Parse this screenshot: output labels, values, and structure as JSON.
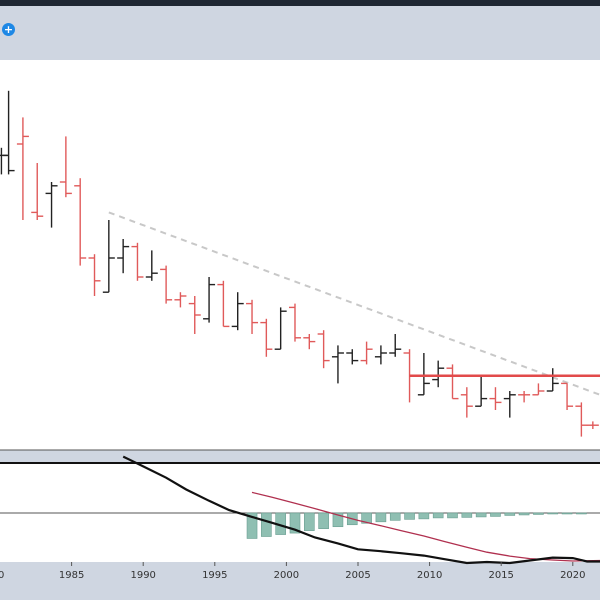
{
  "toolbar": {
    "add_icon": "plus-circle-icon",
    "add_glyph": "+"
  },
  "colors": {
    "up": "#222222",
    "down": "#e05a5a",
    "trendline": "#c8c8c8",
    "level_line": "#e24a4a",
    "histogram": "#8fbfb2",
    "fast_line": "#111111",
    "slow_line": "#b0304f"
  },
  "chart_data": {
    "type": "ohlc",
    "x_ticks": [
      "1985",
      "1990",
      "1995",
      "2000",
      "2005",
      "2010",
      "2015",
      "2020"
    ],
    "x_range": [
      1980.0,
      2021.9
    ],
    "price": {
      "y_range": [
        0,
        100
      ],
      "bars": [
        {
          "t": 1980.1,
          "o": 77,
          "h": 79,
          "l": 72,
          "c": 77,
          "up": true
        },
        {
          "t": 1980.6,
          "o": 77,
          "h": 94,
          "l": 72,
          "c": 73,
          "up": true
        },
        {
          "t": 1981.6,
          "o": 80,
          "h": 87,
          "l": 60,
          "c": 82,
          "up": false
        },
        {
          "t": 1982.6,
          "o": 62,
          "h": 75,
          "l": 60,
          "c": 61,
          "up": false
        },
        {
          "t": 1983.6,
          "o": 67,
          "h": 70,
          "l": 58,
          "c": 69,
          "up": true
        },
        {
          "t": 1984.6,
          "o": 70,
          "h": 82,
          "l": 66,
          "c": 67,
          "up": false
        },
        {
          "t": 1985.6,
          "o": 69,
          "h": 71,
          "l": 48,
          "c": 50,
          "up": false
        },
        {
          "t": 1986.6,
          "o": 50,
          "h": 51,
          "l": 40,
          "c": 44,
          "up": false
        },
        {
          "t": 1987.6,
          "o": 41,
          "h": 60,
          "l": 41,
          "c": 50,
          "up": true
        },
        {
          "t": 1988.6,
          "o": 50,
          "h": 55,
          "l": 46,
          "c": 53,
          "up": true
        },
        {
          "t": 1989.6,
          "o": 53,
          "h": 54,
          "l": 44,
          "c": 45,
          "up": false
        },
        {
          "t": 1990.6,
          "o": 45,
          "h": 52,
          "l": 44,
          "c": 46,
          "up": true
        },
        {
          "t": 1991.6,
          "o": 47,
          "h": 48,
          "l": 38,
          "c": 39,
          "up": false
        },
        {
          "t": 1992.6,
          "o": 39,
          "h": 41,
          "l": 37,
          "c": 40,
          "up": false
        },
        {
          "t": 1993.6,
          "o": 38,
          "h": 40,
          "l": 30,
          "c": 35,
          "up": false
        },
        {
          "t": 1994.6,
          "o": 34,
          "h": 45,
          "l": 33,
          "c": 43,
          "up": true
        },
        {
          "t": 1995.6,
          "o": 43,
          "h": 44,
          "l": 32,
          "c": 32,
          "up": false
        },
        {
          "t": 1996.6,
          "o": 32,
          "h": 41,
          "l": 31,
          "c": 38,
          "up": true
        },
        {
          "t": 1997.6,
          "o": 38,
          "h": 39,
          "l": 30,
          "c": 33,
          "up": false
        },
        {
          "t": 1998.6,
          "o": 33,
          "h": 34,
          "l": 24,
          "c": 26,
          "up": false
        },
        {
          "t": 1999.6,
          "o": 26,
          "h": 37,
          "l": 26,
          "c": 36,
          "up": true
        },
        {
          "t": 2000.6,
          "o": 37,
          "h": 38,
          "l": 28,
          "c": 29,
          "up": false
        },
        {
          "t": 2001.6,
          "o": 29,
          "h": 30,
          "l": 26,
          "c": 28,
          "up": false
        },
        {
          "t": 2002.6,
          "o": 30,
          "h": 31,
          "l": 21,
          "c": 23,
          "up": false
        },
        {
          "t": 2003.6,
          "o": 24,
          "h": 27,
          "l": 17,
          "c": 25,
          "up": true
        },
        {
          "t": 2004.6,
          "o": 25,
          "h": 26,
          "l": 22,
          "c": 23,
          "up": true
        },
        {
          "t": 2005.6,
          "o": 23,
          "h": 28,
          "l": 22,
          "c": 26,
          "up": false
        },
        {
          "t": 2006.6,
          "o": 24,
          "h": 27,
          "l": 22,
          "c": 25,
          "up": true
        },
        {
          "t": 2007.6,
          "o": 25,
          "h": 30,
          "l": 24,
          "c": 26,
          "up": true
        },
        {
          "t": 2008.6,
          "o": 25,
          "h": 26,
          "l": 12,
          "c": 19,
          "up": false
        },
        {
          "t": 2009.6,
          "o": 14,
          "h": 25,
          "l": 14,
          "c": 17,
          "up": true
        },
        {
          "t": 2010.6,
          "o": 18,
          "h": 23,
          "l": 16,
          "c": 21,
          "up": true
        },
        {
          "t": 2011.6,
          "o": 21,
          "h": 22,
          "l": 13,
          "c": 13,
          "up": false
        },
        {
          "t": 2012.6,
          "o": 14,
          "h": 16,
          "l": 8,
          "c": 11,
          "up": false
        },
        {
          "t": 2013.6,
          "o": 11,
          "h": 19,
          "l": 11,
          "c": 13,
          "up": true
        },
        {
          "t": 2014.6,
          "o": 13,
          "h": 16,
          "l": 10,
          "c": 12,
          "up": false
        },
        {
          "t": 2015.6,
          "o": 13,
          "h": 15,
          "l": 8,
          "c": 14,
          "up": true
        },
        {
          "t": 2016.6,
          "o": 14,
          "h": 15,
          "l": 12,
          "c": 14,
          "up": false
        },
        {
          "t": 2017.6,
          "o": 14,
          "h": 17,
          "l": 14,
          "c": 15,
          "up": false
        },
        {
          "t": 2018.6,
          "o": 15,
          "h": 21,
          "l": 15,
          "c": 17,
          "up": true
        },
        {
          "t": 2019.6,
          "o": 17,
          "h": 17,
          "l": 10,
          "c": 11,
          "up": false
        },
        {
          "t": 2020.6,
          "o": 11,
          "h": 12,
          "l": 3,
          "c": 6,
          "up": false
        },
        {
          "t": 2021.4,
          "o": 6,
          "h": 7,
          "l": 5,
          "c": 6,
          "up": false
        }
      ],
      "trendline": {
        "from": [
          1987.6,
          62
        ],
        "to": [
          2021.9,
          14
        ]
      },
      "level_line": {
        "from": [
          2008.6,
          19
        ],
        "to": [
          2021.9,
          19
        ]
      }
    },
    "indicator": {
      "y_range": [
        -10,
        10
      ],
      "zero": 0,
      "histogram": [
        {
          "t": 1997.6,
          "v": -5.2
        },
        {
          "t": 1998.6,
          "v": -4.8
        },
        {
          "t": 1999.6,
          "v": -4.4
        },
        {
          "t": 2000.6,
          "v": -4.1
        },
        {
          "t": 2001.6,
          "v": -3.6
        },
        {
          "t": 2002.6,
          "v": -3.2
        },
        {
          "t": 2003.6,
          "v": -2.8
        },
        {
          "t": 2004.6,
          "v": -2.4
        },
        {
          "t": 2005.6,
          "v": -2.1
        },
        {
          "t": 2006.6,
          "v": -1.8
        },
        {
          "t": 2007.6,
          "v": -1.5
        },
        {
          "t": 2008.6,
          "v": -1.3
        },
        {
          "t": 2009.6,
          "v": -1.2
        },
        {
          "t": 2010.6,
          "v": -1.0
        },
        {
          "t": 2011.6,
          "v": -1.0
        },
        {
          "t": 2012.6,
          "v": -0.9
        },
        {
          "t": 2013.6,
          "v": -0.8
        },
        {
          "t": 2014.6,
          "v": -0.7
        },
        {
          "t": 2015.6,
          "v": -0.5
        },
        {
          "t": 2016.6,
          "v": -0.4
        },
        {
          "t": 2017.6,
          "v": -0.3
        },
        {
          "t": 2018.6,
          "v": -0.2
        },
        {
          "t": 2019.6,
          "v": -0.2
        },
        {
          "t": 2020.6,
          "v": -0.2
        }
      ],
      "fast": [
        [
          1988.6,
          11.5
        ],
        [
          1990.0,
          9.5
        ],
        [
          1991.6,
          7.2
        ],
        [
          1993.0,
          4.8
        ],
        [
          1994.6,
          2.5
        ],
        [
          1996.0,
          0.6
        ],
        [
          1997.6,
          -0.8
        ],
        [
          1999.0,
          -2.0
        ],
        [
          2000.6,
          -3.4
        ],
        [
          2002.0,
          -5.0
        ],
        [
          2003.6,
          -6.2
        ],
        [
          2005.0,
          -7.4
        ],
        [
          2006.6,
          -7.8
        ],
        [
          2008.0,
          -8.2
        ],
        [
          2009.6,
          -8.7
        ],
        [
          2011.0,
          -9.4
        ],
        [
          2012.6,
          -10.2
        ],
        [
          2014.0,
          -10.0
        ],
        [
          2015.6,
          -10.2
        ],
        [
          2017.0,
          -9.7
        ],
        [
          2018.6,
          -9.1
        ],
        [
          2020.0,
          -9.2
        ],
        [
          2021.0,
          -9.9
        ],
        [
          2021.9,
          -9.9
        ]
      ],
      "slow": [
        [
          1997.6,
          4.2
        ],
        [
          1999.0,
          3.2
        ],
        [
          2000.6,
          2.0
        ],
        [
          2002.0,
          0.9
        ],
        [
          2003.6,
          -0.4
        ],
        [
          2005.0,
          -1.5
        ],
        [
          2006.6,
          -2.6
        ],
        [
          2008.0,
          -3.6
        ],
        [
          2009.6,
          -4.7
        ],
        [
          2011.0,
          -5.8
        ],
        [
          2012.6,
          -7.0
        ],
        [
          2014.0,
          -8.0
        ],
        [
          2015.6,
          -8.8
        ],
        [
          2017.0,
          -9.3
        ],
        [
          2018.6,
          -9.6
        ],
        [
          2020.0,
          -9.8
        ],
        [
          2021.9,
          -9.7
        ]
      ]
    }
  }
}
